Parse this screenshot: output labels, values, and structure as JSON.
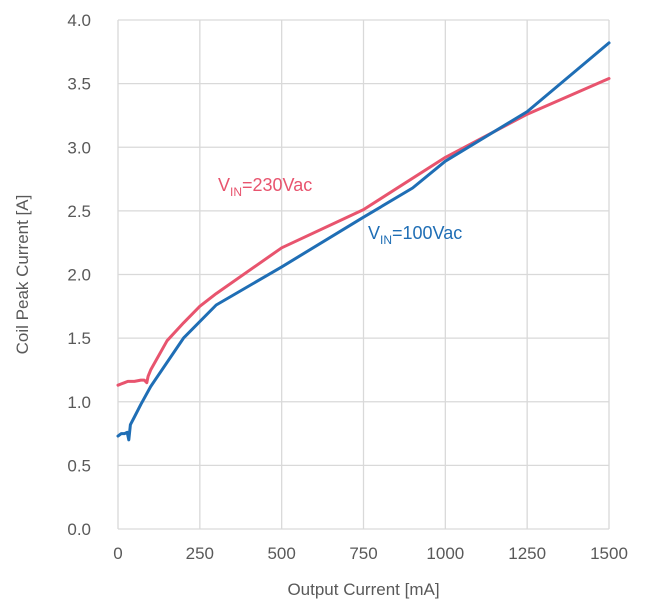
{
  "chart_data": {
    "type": "line",
    "title": "",
    "xlabel": "Output Current [mA]",
    "ylabel": "Coil Peak Current  [A]",
    "xlim": [
      0,
      1500
    ],
    "ylim": [
      0,
      4.0
    ],
    "x_ticks": [
      0,
      250,
      500,
      750,
      1000,
      1250,
      1500
    ],
    "x_tick_labels": [
      "0",
      "250",
      "500",
      "750",
      "1000",
      "1250",
      "1500"
    ],
    "y_ticks": [
      0,
      0.5,
      1.0,
      1.5,
      2.0,
      2.5,
      3.0,
      3.5,
      4.0
    ],
    "y_tick_labels": [
      "0.0",
      "0.5",
      "1.0",
      "1.5",
      "2.0",
      "2.5",
      "3.0",
      "3.5",
      "4.0"
    ],
    "grid": true,
    "legend": "none",
    "series": [
      {
        "label_main": "V",
        "label_sub": "IN",
        "label_rest": "=230Vac",
        "color": "#e8546e",
        "points": [
          [
            0,
            1.13
          ],
          [
            10,
            1.14
          ],
          [
            20,
            1.15
          ],
          [
            30,
            1.16
          ],
          [
            50,
            1.16
          ],
          [
            70,
            1.17
          ],
          [
            80,
            1.17
          ],
          [
            88,
            1.15
          ],
          [
            92,
            1.2
          ],
          [
            100,
            1.25
          ],
          [
            150,
            1.48
          ],
          [
            200,
            1.62
          ],
          [
            250,
            1.75
          ],
          [
            300,
            1.85
          ],
          [
            500,
            2.21
          ],
          [
            750,
            2.51
          ],
          [
            1000,
            2.92
          ],
          [
            1250,
            3.26
          ],
          [
            1500,
            3.54
          ]
        ]
      },
      {
        "label_main": "V",
        "label_sub": "IN",
        "label_rest": "=100Vac",
        "color": "#1f6eb5",
        "points": [
          [
            0,
            0.73
          ],
          [
            10,
            0.75
          ],
          [
            20,
            0.75
          ],
          [
            28,
            0.76
          ],
          [
            33,
            0.7
          ],
          [
            38,
            0.82
          ],
          [
            50,
            0.88
          ],
          [
            70,
            0.98
          ],
          [
            100,
            1.12
          ],
          [
            200,
            1.5
          ],
          [
            300,
            1.76
          ],
          [
            500,
            2.06
          ],
          [
            750,
            2.45
          ],
          [
            900,
            2.68
          ],
          [
            1000,
            2.89
          ],
          [
            1250,
            3.28
          ],
          [
            1500,
            3.82
          ]
        ]
      }
    ]
  }
}
